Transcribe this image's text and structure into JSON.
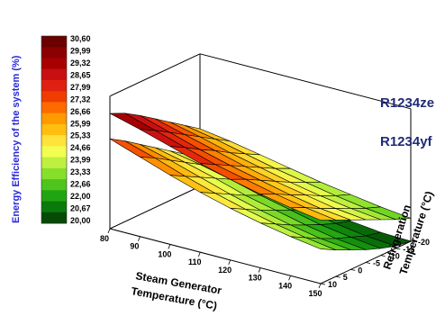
{
  "chart_data": {
    "type": "surface3d",
    "ylabel": "Energy Efficiency of the system (%)",
    "xlabel_line1": "Steam Generator",
    "xlabel_line2": "Temperature (°C)",
    "zlabel_line1": "Refrigeration",
    "zlabel_line2": "Temperature (°C)",
    "x_ticks": [
      "80",
      "90",
      "100",
      "110",
      "120",
      "130",
      "140",
      "150"
    ],
    "z_ticks": [
      "10",
      "5",
      "0",
      "-5",
      "-10",
      "-15",
      "-20"
    ],
    "colorbar_ticks": [
      "30,60",
      "29,99",
      "29,32",
      "28,65",
      "27,99",
      "27,32",
      "26,66",
      "25,99",
      "25,33",
      "24,66",
      "23,99",
      "23,33",
      "22,66",
      "22,00",
      "20,67",
      "20,00"
    ],
    "colorbar_colors": [
      "#6b0000",
      "#8b0000",
      "#a80000",
      "#c81010",
      "#e02010",
      "#f03c00",
      "#ff6a00",
      "#ff9a00",
      "#ffbe10",
      "#ffe23a",
      "#f2ff50",
      "#bff040",
      "#86e02a",
      "#4fc41c",
      "#1fa512",
      "#0a7a0a",
      "#064a06"
    ],
    "x_range": [
      80,
      150
    ],
    "z_range": [
      -20,
      10
    ],
    "value_range": [
      20.0,
      30.6
    ],
    "series": [
      {
        "name": "R1234ze",
        "x": [
          80,
          90,
          100,
          110,
          120,
          130,
          140,
          150
        ],
        "z": [
          10,
          5,
          0,
          -5,
          -10,
          -15,
          -20
        ],
        "values": [
          [
            30.0,
            29.3,
            28.5,
            27.7,
            27.0,
            26.4,
            25.9,
            25.5
          ],
          [
            29.4,
            28.6,
            27.8,
            27.0,
            26.4,
            25.8,
            25.3,
            24.9
          ],
          [
            28.6,
            27.8,
            27.0,
            26.3,
            25.7,
            25.1,
            24.6,
            24.3
          ],
          [
            27.7,
            27.0,
            26.3,
            25.6,
            25.0,
            24.5,
            24.0,
            23.7
          ],
          [
            26.8,
            26.2,
            25.5,
            24.9,
            24.3,
            23.8,
            23.4,
            23.1
          ],
          [
            25.9,
            25.4,
            24.8,
            24.2,
            23.7,
            23.2,
            22.8,
            22.5
          ],
          [
            25.0,
            24.6,
            24.1,
            23.6,
            23.1,
            22.7,
            22.3,
            22.0
          ]
        ]
      },
      {
        "name": "R1234yf",
        "x": [
          80,
          90,
          100,
          110,
          120,
          130,
          140,
          150
        ],
        "z": [
          10,
          5,
          0,
          -5,
          -10,
          -15,
          -20
        ],
        "values": [
          [
            27.8,
            26.9,
            26.0,
            25.2,
            24.5,
            23.9,
            23.4,
            23.0
          ],
          [
            27.0,
            26.2,
            25.3,
            24.5,
            23.8,
            23.2,
            22.7,
            22.3
          ],
          [
            26.1,
            25.4,
            24.6,
            23.8,
            23.1,
            22.5,
            22.0,
            21.7
          ],
          [
            25.2,
            24.6,
            23.9,
            23.1,
            22.5,
            21.9,
            21.4,
            21.1
          ],
          [
            24.3,
            23.8,
            23.2,
            22.5,
            21.9,
            21.3,
            20.9,
            20.6
          ],
          [
            23.4,
            23.0,
            22.5,
            21.9,
            21.3,
            20.8,
            20.4,
            20.2
          ],
          [
            22.6,
            22.3,
            21.9,
            21.3,
            20.8,
            20.4,
            20.1,
            20.0
          ]
        ]
      }
    ]
  }
}
